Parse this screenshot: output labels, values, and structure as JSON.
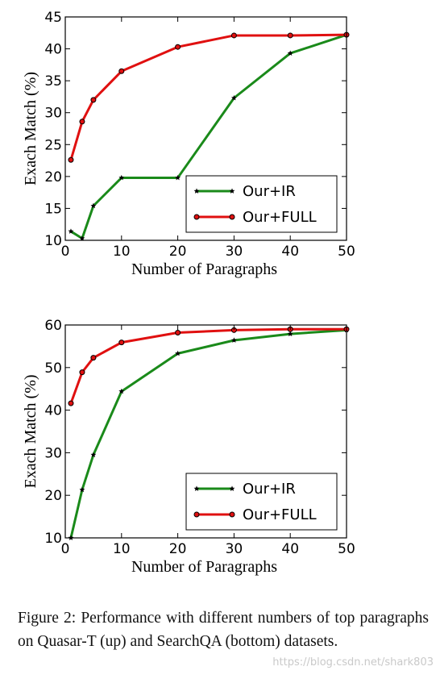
{
  "chart_data": [
    {
      "type": "line",
      "title": "",
      "xlabel": "Number of Paragraphs",
      "ylabel": "Exach Match (%)",
      "xlim": [
        0,
        50
      ],
      "ylim": [
        10,
        45
      ],
      "xticks": [
        0,
        10,
        20,
        30,
        40,
        50
      ],
      "yticks": [
        10,
        15,
        20,
        25,
        30,
        35,
        40,
        45
      ],
      "grid": false,
      "legend_position": "lower-right",
      "series": [
        {
          "name": "Our+IR",
          "color": "#1a8a1a",
          "marker": "star",
          "x": [
            1,
            3,
            5,
            10,
            20,
            30,
            40,
            50
          ],
          "y": [
            11.4,
            10.3,
            15.4,
            19.8,
            19.8,
            32.3,
            39.3,
            42.2
          ]
        },
        {
          "name": "Our+FULL",
          "color": "#e01010",
          "marker": "circle",
          "x": [
            1,
            3,
            5,
            10,
            20,
            30,
            40,
            50
          ],
          "y": [
            22.6,
            28.6,
            32.0,
            36.5,
            40.3,
            42.1,
            42.1,
            42.2
          ]
        }
      ]
    },
    {
      "type": "line",
      "title": "",
      "xlabel": "Number of Paragraphs",
      "ylabel": "Exach Match (%)",
      "xlim": [
        0,
        50
      ],
      "ylim": [
        10,
        60
      ],
      "xticks": [
        0,
        10,
        20,
        30,
        40,
        50
      ],
      "yticks": [
        10,
        20,
        30,
        40,
        50,
        60
      ],
      "grid": false,
      "legend_position": "lower-right",
      "series": [
        {
          "name": "Our+IR",
          "color": "#1a8a1a",
          "marker": "star",
          "x": [
            1,
            3,
            5,
            10,
            20,
            30,
            40,
            50
          ],
          "y": [
            10.0,
            21.3,
            29.5,
            44.4,
            53.3,
            56.4,
            57.9,
            58.8
          ]
        },
        {
          "name": "Our+FULL",
          "color": "#e01010",
          "marker": "circle",
          "x": [
            1,
            3,
            5,
            10,
            20,
            30,
            40,
            50
          ],
          "y": [
            41.6,
            48.9,
            52.3,
            55.9,
            58.2,
            58.8,
            59.0,
            59.0
          ]
        }
      ]
    }
  ],
  "caption": "Figure 2: Performance with different numbers of top paragraphs on Quasar-T (up) and SearchQA (bottom) datasets.",
  "watermark": "https://blog.csdn.net/shark803"
}
